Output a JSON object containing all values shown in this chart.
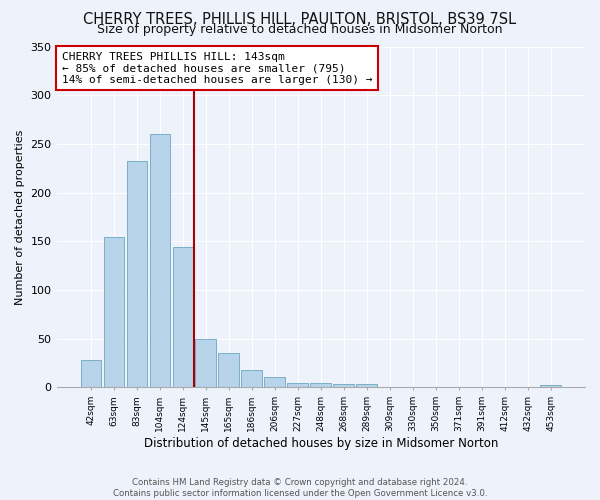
{
  "title": "CHERRY TREES, PHILLIS HILL, PAULTON, BRISTOL, BS39 7SL",
  "subtitle": "Size of property relative to detached houses in Midsomer Norton",
  "xlabel": "Distribution of detached houses by size in Midsomer Norton",
  "ylabel": "Number of detached properties",
  "bar_labels": [
    "42sqm",
    "63sqm",
    "83sqm",
    "104sqm",
    "124sqm",
    "145sqm",
    "165sqm",
    "186sqm",
    "206sqm",
    "227sqm",
    "248sqm",
    "268sqm",
    "289sqm",
    "309sqm",
    "330sqm",
    "350sqm",
    "371sqm",
    "391sqm",
    "412sqm",
    "432sqm",
    "453sqm"
  ],
  "bar_values": [
    28,
    154,
    232,
    260,
    144,
    50,
    35,
    18,
    11,
    5,
    5,
    4,
    4,
    0,
    0,
    0,
    0,
    0,
    0,
    0,
    3
  ],
  "bar_color": "#b8d4ea",
  "bar_edge_color": "#7aafc8",
  "vline_x_index": 5,
  "vline_color": "#aa0000",
  "annotation_text": "CHERRY TREES PHILLIS HILL: 143sqm\n← 85% of detached houses are smaller (795)\n14% of semi-detached houses are larger (130) →",
  "annotation_box_color": "#ffffff",
  "annotation_box_edge": "#cc0000",
  "ylim": [
    0,
    350
  ],
  "yticks": [
    0,
    50,
    100,
    150,
    200,
    250,
    300,
    350
  ],
  "footer_line1": "Contains HM Land Registry data © Crown copyright and database right 2024.",
  "footer_line2": "Contains public sector information licensed under the Open Government Licence v3.0.",
  "bg_color": "#eef2fb",
  "grid_color": "#ffffff",
  "title_fontsize": 10.5,
  "subtitle_fontsize": 9
}
